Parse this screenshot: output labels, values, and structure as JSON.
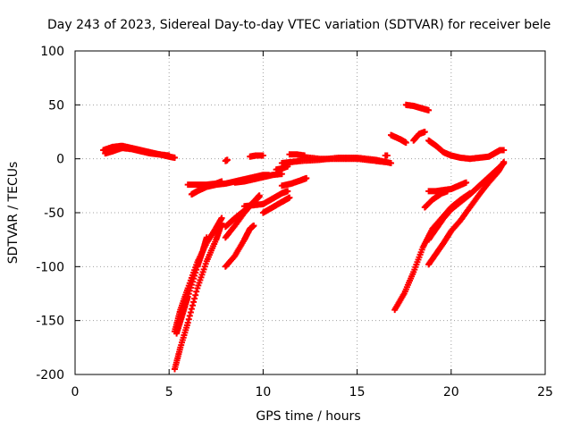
{
  "chart_data": {
    "type": "scatter",
    "title": "Day 243 of 2023, Sidereal Day-to-day VTEC variation (SDTVAR) for receiver bele",
    "xlabel": "GPS time / hours",
    "ylabel": "SDTVAR / TECUs",
    "xlim": [
      0,
      25
    ],
    "ylim": [
      -200,
      100
    ],
    "x_ticks": [
      "0",
      "5",
      "10",
      "15",
      "20",
      "25"
    ],
    "y_ticks": [
      "100",
      "50",
      "0",
      "-50",
      "-100",
      "-150",
      "-200"
    ],
    "grid": true,
    "marker": "plus",
    "series": [
      {
        "color": "#ff0000",
        "segments": [
          [
            [
              1.5,
              8
            ],
            [
              2.0,
              11
            ],
            [
              2.5,
              12
            ],
            [
              3.0,
              10
            ],
            [
              3.5,
              8
            ],
            [
              4.0,
              6
            ],
            [
              4.5,
              4
            ],
            [
              5.0,
              2
            ],
            [
              5.3,
              1
            ]
          ],
          [
            [
              1.6,
              5
            ],
            [
              2.0,
              7
            ],
            [
              2.5,
              10
            ],
            [
              3.0,
              9
            ],
            [
              3.5,
              7
            ],
            [
              4.0,
              5
            ],
            [
              4.5,
              4
            ],
            [
              5.0,
              3
            ]
          ],
          [
            [
              6.2,
              -33
            ],
            [
              6.5,
              -30
            ],
            [
              7.0,
              -26
            ],
            [
              7.5,
              -24
            ],
            [
              8.0,
              -23
            ],
            [
              8.5,
              -21
            ],
            [
              9.0,
              -19
            ],
            [
              9.5,
              -17
            ],
            [
              10.0,
              -15
            ],
            [
              10.3,
              -15
            ]
          ],
          [
            [
              6.0,
              -24
            ],
            [
              6.5,
              -24
            ],
            [
              7.0,
              -24
            ],
            [
              7.5,
              -23
            ],
            [
              7.8,
              -21
            ]
          ],
          [
            [
              8.0,
              -2
            ],
            [
              8.1,
              -1
            ]
          ],
          [
            [
              9.3,
              2
            ],
            [
              9.6,
              3
            ],
            [
              10.0,
              3
            ]
          ],
          [
            [
              10.7,
              -10
            ],
            [
              11.0,
              -9
            ],
            [
              11.3,
              -7
            ]
          ],
          [
            [
              11.4,
              4
            ],
            [
              11.8,
              4
            ],
            [
              12.2,
              3
            ]
          ],
          [
            [
              11.0,
              -4
            ],
            [
              11.5,
              -3
            ],
            [
              12.0,
              -2
            ],
            [
              13.0,
              -1
            ],
            [
              14.0,
              1
            ],
            [
              15.0,
              1
            ],
            [
              16.0,
              -1
            ],
            [
              16.8,
              -4
            ]
          ],
          [
            [
              12.0,
              2
            ],
            [
              13.0,
              0
            ],
            [
              14.0,
              0
            ],
            [
              15.0,
              0
            ],
            [
              16.0,
              -2
            ],
            [
              16.5,
              -3
            ]
          ],
          [
            [
              8.5,
              -22
            ],
            [
              9.0,
              -21
            ],
            [
              9.5,
              -19
            ],
            [
              10.0,
              -17
            ],
            [
              10.5,
              -15
            ],
            [
              11.0,
              -14
            ]
          ],
          [
            [
              11.0,
              -25
            ],
            [
              11.5,
              -23
            ],
            [
              12.0,
              -20
            ],
            [
              12.3,
              -18
            ]
          ],
          [
            [
              10.0,
              -42
            ],
            [
              10.5,
              -37
            ],
            [
              11.0,
              -32
            ],
            [
              11.3,
              -30
            ]
          ],
          [
            [
              9.0,
              -44
            ],
            [
              9.5,
              -43
            ],
            [
              10.0,
              -42
            ]
          ],
          [
            [
              10.0,
              -50
            ],
            [
              10.5,
              -45
            ],
            [
              11.0,
              -40
            ],
            [
              11.4,
              -36
            ]
          ],
          [
            [
              8.0,
              -63
            ],
            [
              8.5,
              -55
            ],
            [
              9.0,
              -48
            ],
            [
              9.5,
              -40
            ],
            [
              9.8,
              -35
            ]
          ],
          [
            [
              8.0,
              -73
            ],
            [
              8.5,
              -62
            ],
            [
              9.0,
              -50
            ],
            [
              9.5,
              -40
            ],
            [
              9.8,
              -34
            ]
          ],
          [
            [
              8.0,
              -100
            ],
            [
              8.5,
              -90
            ],
            [
              9.0,
              -75
            ],
            [
              9.3,
              -65
            ],
            [
              9.5,
              -62
            ]
          ],
          [
            [
              5.3,
              -160
            ],
            [
              5.6,
              -140
            ],
            [
              6.0,
              -120
            ],
            [
              6.5,
              -96
            ],
            [
              7.0,
              -78
            ],
            [
              7.5,
              -64
            ],
            [
              7.8,
              -55
            ]
          ],
          [
            [
              5.3,
              -195
            ],
            [
              5.6,
              -175
            ],
            [
              6.0,
              -152
            ],
            [
              6.5,
              -120
            ],
            [
              7.0,
              -95
            ],
            [
              7.5,
              -75
            ],
            [
              7.8,
              -60
            ]
          ],
          [
            [
              5.4,
              -162
            ],
            [
              5.7,
              -145
            ],
            [
              6.0,
              -128
            ],
            [
              6.5,
              -100
            ],
            [
              6.8,
              -85
            ],
            [
              7.0,
              -73
            ]
          ],
          [
            [
              16.8,
              22
            ],
            [
              17.3,
              18
            ],
            [
              17.6,
              15
            ]
          ],
          [
            [
              16.5,
              3
            ],
            [
              16.6,
              3
            ]
          ],
          [
            [
              18.0,
              17
            ],
            [
              18.3,
              23
            ],
            [
              18.6,
              25
            ]
          ],
          [
            [
              17.6,
              50
            ],
            [
              18.0,
              49
            ],
            [
              18.4,
              47
            ],
            [
              18.8,
              45
            ]
          ],
          [
            [
              18.8,
              17
            ],
            [
              19.2,
              12
            ],
            [
              19.6,
              6
            ],
            [
              20.0,
              3
            ],
            [
              20.5,
              1
            ],
            [
              21.0,
              0
            ],
            [
              21.5,
              1
            ],
            [
              22.0,
              2
            ],
            [
              22.3,
              5
            ],
            [
              22.6,
              8
            ],
            [
              22.8,
              8
            ]
          ],
          [
            [
              17.0,
              -140
            ],
            [
              17.5,
              -125
            ],
            [
              18.0,
              -105
            ],
            [
              18.5,
              -82
            ],
            [
              19.0,
              -65
            ],
            [
              19.5,
              -55
            ],
            [
              20.0,
              -45
            ],
            [
              20.5,
              -38
            ],
            [
              21.0,
              -32
            ]
          ],
          [
            [
              18.6,
              -45
            ],
            [
              19.0,
              -38
            ],
            [
              19.5,
              -32
            ],
            [
              19.8,
              -30
            ]
          ],
          [
            [
              18.8,
              -30
            ],
            [
              19.2,
              -30
            ],
            [
              19.6,
              -29
            ],
            [
              20.0,
              -28
            ],
            [
              20.4,
              -25
            ],
            [
              20.8,
              -22
            ]
          ],
          [
            [
              18.8,
              -75
            ],
            [
              19.2,
              -65
            ],
            [
              19.6,
              -55
            ],
            [
              20.0,
              -47
            ],
            [
              20.5,
              -40
            ],
            [
              21.0,
              -33
            ],
            [
              21.5,
              -25
            ],
            [
              22.0,
              -17
            ],
            [
              22.5,
              -9
            ],
            [
              22.8,
              -4
            ]
          ],
          [
            [
              18.8,
              -98
            ],
            [
              19.2,
              -88
            ],
            [
              19.6,
              -78
            ],
            [
              20.0,
              -67
            ],
            [
              20.5,
              -57
            ],
            [
              21.0,
              -45
            ],
            [
              21.5,
              -33
            ],
            [
              22.0,
              -22
            ],
            [
              22.5,
              -12
            ],
            [
              22.8,
              -3
            ]
          ]
        ]
      }
    ]
  }
}
